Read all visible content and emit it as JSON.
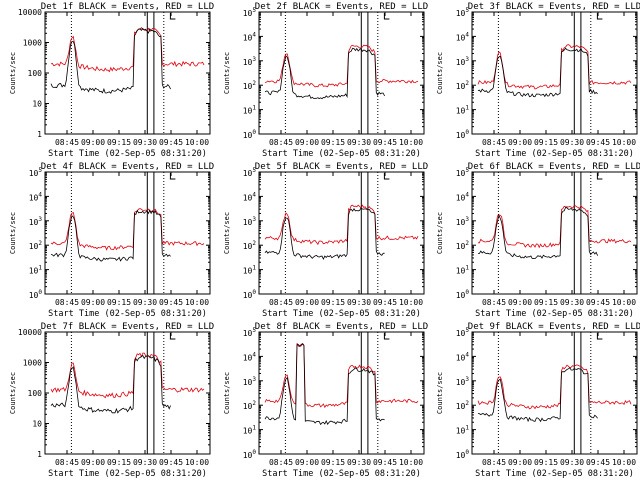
{
  "chart_data": [
    {
      "type": "line",
      "title": "Det 1f BLACK = Events, RED = LLD",
      "xlabel": "Start Time (02-Sep-05 08:31:20)",
      "ylabel": "Counts/sec",
      "scale": "log",
      "ylim": [
        1,
        10000
      ],
      "ytick_style": "plain",
      "xtick_labels": [
        "08:45",
        "09:00",
        "09:15",
        "09:30",
        "09:45",
        "10:00"
      ],
      "events_level": 40,
      "lld_level": 200,
      "flare_peak": 2500,
      "flare_peak_lld": 2800,
      "spike": 1200,
      "spike_lld": 1400,
      "lld_start_pos": 0.0,
      "extra_spike": 0
    },
    {
      "type": "line",
      "title": "Det 2f BLACK = Events, RED = LLD",
      "xlabel": "Start Time (02-Sep-05 08:31:20)",
      "ylabel": "Counts/sec",
      "scale": "log",
      "ylim": [
        1,
        100000
      ],
      "ytick_style": "power",
      "xtick_labels": [
        "08:45",
        "09:00",
        "09:15",
        "09:30",
        "09:45",
        "10:00"
      ],
      "events_level": 50,
      "lld_level": 150,
      "flare_peak": 3000,
      "flare_peak_lld": 4000,
      "spike": 1500,
      "spike_lld": 2000,
      "lld_start_pos": 0.0,
      "extra_spike": 0
    },
    {
      "type": "line",
      "title": "Det 3f BLACK = Events, RED = LLD",
      "xlabel": "Start Time (02-Sep-05 08:31:20)",
      "ylabel": "Counts/sec",
      "scale": "log",
      "ylim": [
        1,
        100000
      ],
      "ytick_style": "power",
      "xtick_labels": [
        "08:45",
        "09:00",
        "09:15",
        "09:30",
        "09:45",
        "10:00"
      ],
      "events_level": 60,
      "lld_level": 130,
      "flare_peak": 3000,
      "flare_peak_lld": 4000,
      "spike": 1500,
      "spike_lld": 2000,
      "lld_start_pos": 0.0,
      "extra_spike": 0
    },
    {
      "type": "line",
      "title": "Det 4f BLACK = Events, RED = LLD",
      "xlabel": "Start Time (02-Sep-05 08:31:20)",
      "ylabel": "Counts/sec",
      "scale": "log",
      "ylim": [
        1,
        100000
      ],
      "ytick_style": "power",
      "xtick_labels": [
        "08:45",
        "09:00",
        "09:15",
        "09:30",
        "09:45",
        "10:00"
      ],
      "events_level": 40,
      "lld_level": 120,
      "flare_peak": 2500,
      "flare_peak_lld": 3000,
      "spike": 1500,
      "spike_lld": 2000,
      "lld_start_pos": 0.0,
      "extra_spike": 0
    },
    {
      "type": "line",
      "title": "Det 5f BLACK = Events, RED = LLD",
      "xlabel": "Start Time (02-Sep-05 08:31:20)",
      "ylabel": "Counts/sec",
      "scale": "log",
      "ylim": [
        1,
        100000
      ],
      "ytick_style": "power",
      "xtick_labels": [
        "08:45",
        "09:00",
        "09:15",
        "09:30",
        "09:45",
        "10:00"
      ],
      "events_level": 50,
      "lld_level": 200,
      "flare_peak": 3000,
      "flare_peak_lld": 4000,
      "spike": 1500,
      "spike_lld": 2000,
      "lld_start_pos": 0.0,
      "extra_spike": 0
    },
    {
      "type": "line",
      "title": "Det 6f BLACK = Events, RED = LLD",
      "xlabel": "Start Time (02-Sep-05 08:31:20)",
      "ylabel": "Counts/sec",
      "scale": "log",
      "ylim": [
        1,
        100000
      ],
      "ytick_style": "power",
      "xtick_labels": [
        "08:45",
        "09:00",
        "09:15",
        "09:30",
        "09:45",
        "10:00"
      ],
      "events_level": 50,
      "lld_level": 150,
      "flare_peak": 3000,
      "flare_peak_lld": 4000,
      "spike": 1500,
      "spike_lld": 2000,
      "lld_start_pos": 0.0,
      "extra_spike": 0
    },
    {
      "type": "line",
      "title": "Det 7f BLACK = Events, RED = LLD",
      "xlabel": "Start Time (02-Sep-05 08:31:20)",
      "ylabel": "Counts/sec",
      "scale": "log",
      "ylim": [
        1,
        10000
      ],
      "ytick_style": "plain",
      "xtick_labels": [
        "08:45",
        "09:00",
        "09:15",
        "09:30",
        "09:45",
        "10:00"
      ],
      "events_level": 40,
      "lld_level": 130,
      "flare_peak": 1500,
      "flare_peak_lld": 1800,
      "spike": 700,
      "spike_lld": 800,
      "lld_start_pos": 0.0,
      "extra_spike": 0
    },
    {
      "type": "line",
      "title": "Det 8f BLACK = Events, RED = LLD",
      "xlabel": "Start Time (02-Sep-05 08:31:20)",
      "ylabel": "Counts/sec",
      "scale": "log",
      "ylim": [
        1,
        100000
      ],
      "ytick_style": "power",
      "xtick_labels": [
        "08:45",
        "09:00",
        "09:15",
        "09:30",
        "09:45",
        "10:00"
      ],
      "events_level": 30,
      "lld_level": 150,
      "flare_peak": 3000,
      "flare_peak_lld": 4000,
      "spike": 1200,
      "spike_lld": 1500,
      "lld_start_pos": 0.0,
      "extra_spike": 30000
    },
    {
      "type": "line",
      "title": "Det 9f BLACK = Events, RED = LLD",
      "xlabel": "Start Time (02-Sep-05 08:31:20)",
      "ylabel": "Counts/sec",
      "scale": "log",
      "ylim": [
        1,
        100000
      ],
      "ytick_style": "power",
      "xtick_labels": [
        "08:45",
        "09:00",
        "09:15",
        "09:30",
        "09:45",
        "10:00"
      ],
      "events_level": 40,
      "lld_level": 130,
      "flare_peak": 3000,
      "flare_peak_lld": 4000,
      "spike": 1200,
      "spike_lld": 1500,
      "lld_start_pos": 0.0,
      "extra_spike": 0
    }
  ],
  "colors": {
    "events": "#000000",
    "lld": "#e0000f",
    "axes": "#000000"
  }
}
